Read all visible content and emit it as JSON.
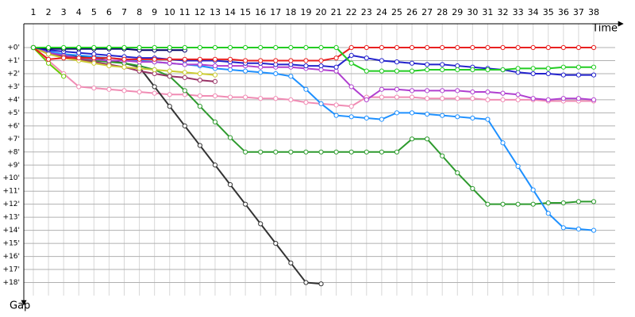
{
  "chart_data": {
    "type": "line",
    "x_label": "Time",
    "y_label": "Gap",
    "categories": [
      "1",
      "2",
      "3",
      "4",
      "5",
      "6",
      "7",
      "8",
      "9",
      "10",
      "11",
      "12",
      "13",
      "14",
      "15",
      "16",
      "17",
      "18",
      "19",
      "20",
      "21",
      "22",
      "23",
      "24",
      "25",
      "26",
      "27",
      "28",
      "29",
      "30",
      "31",
      "32",
      "33",
      "34",
      "35",
      "36",
      "37",
      "38"
    ],
    "ylim": [
      0,
      19
    ],
    "yticks": [
      {
        "value": 0,
        "label": "+0'"
      },
      {
        "value": 1,
        "label": "+1'"
      },
      {
        "value": 2,
        "label": "+2'"
      },
      {
        "value": 3,
        "label": "+3'"
      },
      {
        "value": 4,
        "label": "+4'"
      },
      {
        "value": 5,
        "label": "+5'"
      },
      {
        "value": 6,
        "label": "+6'"
      },
      {
        "value": 7,
        "label": "+7'"
      },
      {
        "value": 8,
        "label": "+8'"
      },
      {
        "value": 9,
        "label": "+9'"
      },
      {
        "value": 10,
        "label": "+10'"
      },
      {
        "value": 11,
        "label": "+11'"
      },
      {
        "value": 12,
        "label": "+12'"
      },
      {
        "value": 13,
        "label": "+13'"
      },
      {
        "value": 14,
        "label": "+14'"
      },
      {
        "value": 15,
        "label": "+15'"
      },
      {
        "value": 16,
        "label": "+16'"
      },
      {
        "value": 17,
        "label": "+17'"
      },
      {
        "value": 18,
        "label": "+18'"
      }
    ],
    "grid": true,
    "series": [
      {
        "color": "#f08cb4",
        "values": [
          0,
          1.0,
          2.0,
          3.0,
          3.1,
          3.2,
          3.3,
          3.4,
          3.5,
          3.6,
          3.6,
          3.7,
          3.7,
          3.8,
          3.8,
          3.9,
          3.9,
          4.0,
          4.2,
          4.3,
          4.4,
          4.5,
          3.8,
          3.8,
          3.8,
          3.8,
          3.9,
          3.9,
          3.9,
          3.9,
          4.0,
          4.0,
          4.0,
          4.0,
          4.1,
          4.1,
          4.1,
          4.1
        ]
      },
      {
        "color": "#333333",
        "values": [
          0,
          0.4,
          0.6,
          0.7,
          0.8,
          1.0,
          1.2,
          1.5,
          3.0,
          4.5,
          6.0,
          7.5,
          9.0,
          10.5,
          12.0,
          13.5,
          15.0,
          16.5,
          18.0,
          18.1,
          null,
          null,
          null,
          null,
          null,
          null,
          null,
          null,
          null,
          null,
          null,
          null,
          null,
          null,
          null,
          null,
          null,
          null
        ]
      },
      {
        "color": "#2e9a2e",
        "values": [
          0,
          0.5,
          0.7,
          0.8,
          1.0,
          1.1,
          1.2,
          1.4,
          1.7,
          2.2,
          3.3,
          4.5,
          5.7,
          6.9,
          8.0,
          8.0,
          8.0,
          8.0,
          8.0,
          8.0,
          8.0,
          8.0,
          8.0,
          8.0,
          8.0,
          7.0,
          7.0,
          8.3,
          9.6,
          10.8,
          12.0,
          12.0,
          12.0,
          12.0,
          11.9,
          11.9,
          11.8,
          11.8
        ]
      },
      {
        "color": "#1e90ff",
        "values": [
          0,
          0.3,
          0.5,
          0.6,
          0.7,
          0.8,
          0.9,
          1.0,
          1.1,
          1.2,
          1.3,
          1.4,
          1.6,
          1.7,
          1.8,
          1.9,
          2.0,
          2.2,
          3.2,
          4.3,
          5.2,
          5.3,
          5.4,
          5.5,
          5.0,
          5.0,
          5.1,
          5.2,
          5.3,
          5.4,
          5.5,
          7.3,
          9.1,
          10.9,
          12.7,
          13.8,
          13.9,
          14.0
        ]
      },
      {
        "color": "#b040d0",
        "values": [
          0,
          0.4,
          0.6,
          0.8,
          0.9,
          1.0,
          1.0,
          1.1,
          1.1,
          1.2,
          1.3,
          1.3,
          1.4,
          1.4,
          1.4,
          1.5,
          1.5,
          1.5,
          1.6,
          1.7,
          1.8,
          3.0,
          4.0,
          3.2,
          3.2,
          3.3,
          3.3,
          3.3,
          3.3,
          3.4,
          3.4,
          3.5,
          3.6,
          3.9,
          4.0,
          3.9,
          3.9,
          4.0
        ]
      },
      {
        "color": "#993366",
        "values": [
          0,
          0.5,
          0.7,
          0.9,
          1.1,
          1.3,
          1.5,
          1.8,
          2.0,
          2.2,
          2.3,
          2.5,
          2.6,
          null,
          null,
          null,
          null,
          null,
          null,
          null,
          null,
          null,
          null,
          null,
          null,
          null,
          null,
          null,
          null,
          null,
          null,
          null,
          null,
          null,
          null,
          null,
          null,
          null
        ]
      },
      {
        "color": "#cccc33",
        "values": [
          0,
          0.5,
          0.8,
          1.0,
          1.2,
          1.4,
          1.5,
          1.6,
          1.7,
          1.8,
          1.9,
          2.0,
          2.1,
          null,
          null,
          null,
          null,
          null,
          null,
          null,
          null,
          null,
          null,
          null,
          null,
          null,
          null,
          null,
          null,
          null,
          null,
          null,
          null,
          null,
          null,
          null,
          null,
          null
        ]
      },
      {
        "color": "#66cc00",
        "values": [
          0,
          1.2,
          2.2,
          null,
          null,
          null,
          null,
          null,
          null,
          null,
          null,
          null,
          null,
          null,
          null,
          null,
          null,
          null,
          null,
          null,
          null,
          null,
          null,
          null,
          null,
          null,
          null,
          null,
          null,
          null,
          null,
          null,
          null,
          null,
          null,
          null,
          null,
          null
        ]
      },
      {
        "color": "#2222cc",
        "values": [
          0,
          0.2,
          0.3,
          0.4,
          0.5,
          0.6,
          0.7,
          0.8,
          0.8,
          0.9,
          1.0,
          1.0,
          1.0,
          1.1,
          1.2,
          1.2,
          1.3,
          1.3,
          1.4,
          1.4,
          1.5,
          0.6,
          0.8,
          1.0,
          1.1,
          1.2,
          1.3,
          1.3,
          1.4,
          1.5,
          1.6,
          1.7,
          1.9,
          2.0,
          2.0,
          2.1,
          2.1,
          2.1
        ]
      },
      {
        "color": "#000066",
        "values": [
          0,
          0.1,
          0.1,
          0.1,
          0.1,
          0.1,
          0.1,
          0.2,
          0.2,
          0.2,
          0.2,
          null,
          null,
          null,
          null,
          null,
          null,
          null,
          null,
          null,
          null,
          null,
          null,
          null,
          null,
          null,
          null,
          null,
          null,
          null,
          null,
          null,
          null,
          null,
          null,
          null,
          null,
          null
        ]
      },
      {
        "color": "#e82020",
        "values": [
          0,
          0.9,
          0.8,
          0.8,
          0.8,
          0.8,
          0.9,
          0.9,
          0.9,
          0.9,
          0.9,
          0.9,
          0.9,
          0.9,
          1.0,
          1.0,
          1.0,
          1.0,
          1.0,
          1.0,
          0.8,
          0,
          0,
          0,
          0,
          0,
          0,
          0,
          0,
          0,
          0,
          0,
          0,
          0,
          0,
          0,
          0,
          0
        ]
      },
      {
        "color": "#22cc22",
        "values": [
          0,
          0,
          0,
          0,
          0,
          0,
          0,
          0,
          0,
          0,
          0,
          0,
          0,
          0,
          0,
          0,
          0,
          0,
          0,
          0,
          0,
          1.2,
          1.8,
          1.8,
          1.8,
          1.8,
          1.7,
          1.7,
          1.7,
          1.7,
          1.7,
          1.7,
          1.6,
          1.6,
          1.6,
          1.5,
          1.5,
          1.5
        ]
      }
    ]
  }
}
